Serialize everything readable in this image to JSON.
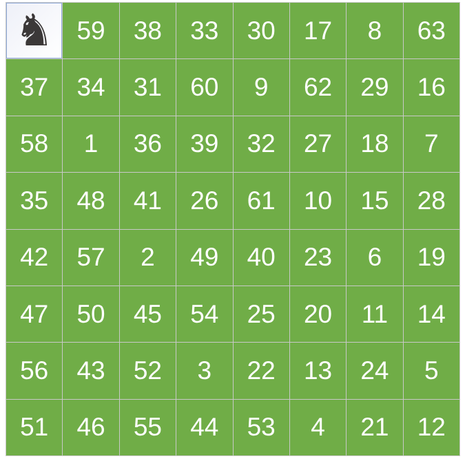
{
  "board": {
    "colors": {
      "cell": "#70ad47",
      "text": "#ffffff",
      "knight": "#3b3838"
    },
    "start_icon": "knight-icon",
    "rows": [
      [
        "",
        "59",
        "38",
        "33",
        "30",
        "17",
        "8",
        "63"
      ],
      [
        "37",
        "34",
        "31",
        "60",
        "9",
        "62",
        "29",
        "16"
      ],
      [
        "58",
        "1",
        "36",
        "39",
        "32",
        "27",
        "18",
        "7"
      ],
      [
        "35",
        "48",
        "41",
        "26",
        "61",
        "10",
        "15",
        "28"
      ],
      [
        "42",
        "57",
        "2",
        "49",
        "40",
        "23",
        "6",
        "19"
      ],
      [
        "47",
        "50",
        "45",
        "54",
        "25",
        "20",
        "11",
        "14"
      ],
      [
        "56",
        "43",
        "52",
        "3",
        "22",
        "13",
        "24",
        "5"
      ],
      [
        "51",
        "46",
        "55",
        "44",
        "53",
        "4",
        "21",
        "12"
      ]
    ]
  }
}
